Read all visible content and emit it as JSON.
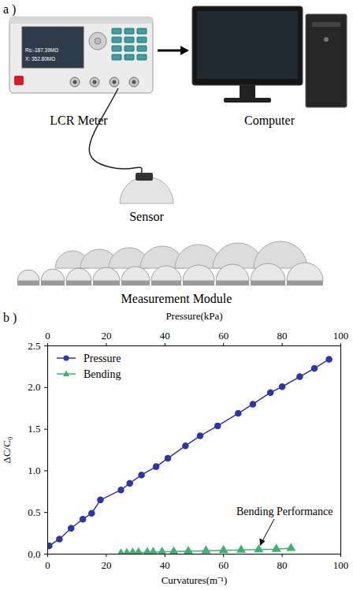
{
  "panel_a": {
    "label": "a )",
    "meter": "LCR Meter",
    "computer": "Computer",
    "sensor": "Sensor",
    "module": "Measurement Module",
    "meter_display": [
      "Rs:-187.39MΩ",
      "X: 352.80MΩ"
    ]
  },
  "chart_data": {
    "type": "line",
    "panel_label": "b )",
    "xlabel": "Curvatures(m⁻¹)",
    "x2label": "Pressure(kPa)",
    "ylabel": "ΔC/C₀",
    "xlim": [
      0,
      100
    ],
    "xticks": [
      0,
      20,
      40,
      60,
      80,
      100
    ],
    "x2lim": [
      0,
      100
    ],
    "x2ticks": [
      0,
      20,
      40,
      60,
      80,
      100
    ],
    "ylim": [
      0,
      2.5
    ],
    "yticks": [
      {
        "value": 0,
        "label": "0.0"
      },
      {
        "value": 0.5,
        "label": "0.5"
      },
      {
        "value": 1,
        "label": "1.0"
      },
      {
        "value": 1.5,
        "label": "1.5"
      },
      {
        "value": 2,
        "label": "2.0"
      },
      {
        "value": 2.5,
        "label": "2.5"
      }
    ],
    "grid": false,
    "legend": "top-left",
    "annotations": [
      {
        "text": "Bending Performance"
      }
    ],
    "series": [
      {
        "name": "Pressure",
        "axis": "x2",
        "color": "#2b35b0",
        "marker": "circle",
        "x": [
          0.5,
          4,
          8,
          12,
          15,
          18,
          25,
          28,
          32,
          37,
          41,
          47,
          52,
          58,
          65,
          70,
          76,
          80,
          86,
          91,
          96
        ],
        "values": [
          0.1,
          0.18,
          0.31,
          0.42,
          0.49,
          0.65,
          0.77,
          0.85,
          0.95,
          1.05,
          1.15,
          1.3,
          1.42,
          1.54,
          1.69,
          1.8,
          1.94,
          2.01,
          2.13,
          2.23,
          2.34
        ]
      },
      {
        "name": "Bending",
        "color": "#3cb371",
        "marker": "triangle",
        "x": [
          25,
          27,
          29,
          31,
          34,
          36,
          39,
          43,
          48,
          54,
          60,
          66,
          72,
          78,
          83
        ],
        "values": [
          0.005,
          0.01,
          0.015,
          0.018,
          0.02,
          0.022,
          0.025,
          0.03,
          0.035,
          0.04,
          0.045,
          0.05,
          0.055,
          0.06,
          0.07
        ]
      }
    ]
  }
}
